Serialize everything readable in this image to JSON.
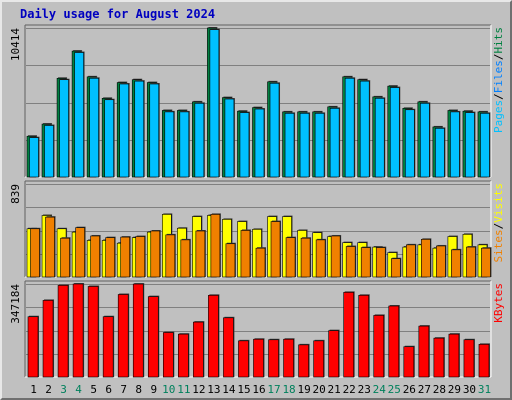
{
  "chart_data": {
    "type": "bar",
    "title": "Daily usage for August 2024",
    "categories": [
      "1",
      "2",
      "3",
      "4",
      "5",
      "6",
      "7",
      "8",
      "9",
      "10",
      "11",
      "12",
      "13",
      "14",
      "15",
      "16",
      "17",
      "18",
      "19",
      "20",
      "21",
      "22",
      "23",
      "24",
      "25",
      "26",
      "27",
      "28",
      "29",
      "30",
      "31"
    ],
    "weekend_days": [
      "3",
      "4",
      "10",
      "11",
      "17",
      "18",
      "24",
      "25",
      "31"
    ],
    "colors": {
      "pages": "#0080ff",
      "files": "#00c0ff",
      "hits": "#008040",
      "visits": "#f08000",
      "sites": "#ffff00",
      "kbytes": "#ff0000",
      "weekday_label": "#000000",
      "weekend_label": "#00805c",
      "title": "#0000c0"
    },
    "panels": [
      {
        "id": "hits-panel",
        "ymax_label": "10414",
        "ylim": [
          0,
          10414
        ],
        "legend": [
          "Pages",
          "Files",
          "Hits"
        ],
        "series": [
          {
            "name": "Hits",
            "values": [
              2850,
              3700,
              6900,
              8800,
              7000,
              5500,
              6600,
              6800,
              6600,
              4650,
              4650,
              5250,
              10414,
              5550,
              4600,
              4850,
              6650,
              4550,
              4550,
              4550,
              4900,
              7000,
              6800,
              5600,
              6350,
              4800,
              5250,
              3500,
              4650,
              4600,
              4550
            ]
          },
          {
            "name": "Files",
            "values": [
              2750,
              3600,
              6800,
              8700,
              6900,
              5400,
              6500,
              6700,
              6500,
              4550,
              4550,
              5150,
              10300,
              5450,
              4500,
              4750,
              6550,
              4450,
              4450,
              4450,
              4800,
              6900,
              6700,
              5500,
              6250,
              4700,
              5150,
              3400,
              4550,
              4500,
              4450
            ]
          },
          {
            "name": "Pages",
            "values": [
              0,
              0,
              0,
              0,
              0,
              0,
              0,
              0,
              0,
              0,
              0,
              0,
              0,
              0,
              0,
              0,
              0,
              0,
              0,
              0,
              0,
              0,
              0,
              0,
              0,
              0,
              0,
              0,
              0,
              0,
              0
            ]
          }
        ]
      },
      {
        "id": "visits-panel",
        "ymax_label": "839",
        "ylim": [
          0,
          839
        ],
        "legend": [
          "Sites",
          "Visits"
        ],
        "series": [
          {
            "name": "Visits",
            "values": [
              435,
              540,
              350,
              445,
              370,
              355,
              360,
              365,
              415,
              380,
              335,
              415,
              565,
              300,
              420,
              260,
              500,
              355,
              350,
              335,
              370,
              275,
              265,
              265,
              165,
              290,
              340,
              280,
              245,
              270,
              260
            ]
          },
          {
            "name": "Sites",
            "values": [
              435,
              555,
              435,
              405,
              330,
              330,
              305,
              355,
              405,
              565,
              440,
              545,
              555,
              520,
              500,
              430,
              545,
              545,
              420,
              400,
              365,
              310,
              310,
              270,
              220,
              270,
              290,
              260,
              365,
              385,
              290
            ]
          }
        ]
      },
      {
        "id": "kbytes-panel",
        "ymax_label": "347184",
        "ylim": [
          0,
          347184
        ],
        "legend": [
          "KBytes"
        ],
        "series": [
          {
            "name": "KBytes",
            "values": [
              225000,
              286000,
              342000,
              347184,
              338000,
              225000,
              308000,
              347000,
              300000,
              166000,
              160000,
              205000,
              305000,
              221000,
              135000,
              141000,
              139000,
              141000,
              120000,
              135000,
              173000,
              316000,
              305000,
              230000,
              265000,
              113000,
              190000,
              145000,
              160000,
              139000,
              122000
            ]
          }
        ]
      }
    ]
  }
}
